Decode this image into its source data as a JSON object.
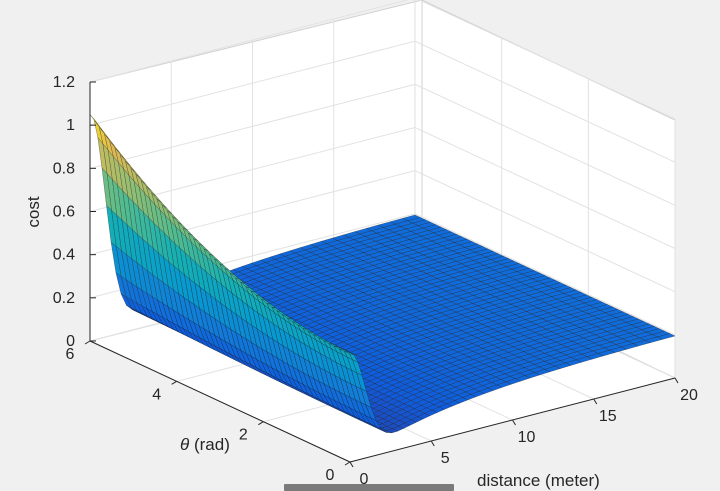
{
  "chart_data": {
    "type": "surface",
    "title": "",
    "xlabel": "distance (meter)",
    "ylabel_prefix": "θ",
    "ylabel_suffix": " (rad)",
    "zlabel": "cost",
    "xlim": [
      0,
      20
    ],
    "ylim": [
      0,
      6
    ],
    "zlim": [
      0,
      1.2
    ],
    "x_ticks": [
      "0",
      "5",
      "10",
      "15",
      "20"
    ],
    "y_ticks": [
      "0",
      "2",
      "4",
      "6"
    ],
    "z_ticks": [
      "0",
      "0.2",
      "0.4",
      "0.6",
      "0.8",
      "1",
      "1.2"
    ],
    "grid": true,
    "colormap": "parula",
    "surface_samples": {
      "note_x": "distance",
      "theta_values": [
        0,
        1.2,
        2.4,
        3.6,
        4.8,
        6.0
      ],
      "distance_values": [
        0,
        0.5,
        1,
        1.5,
        2,
        3,
        4,
        6,
        8,
        10,
        12,
        14,
        16,
        18,
        20
      ],
      "cost_at_theta_0": [
        0.58,
        0.48,
        0.33,
        0.18,
        0.07,
        0.02,
        0.04,
        0.08,
        0.11,
        0.14,
        0.16,
        0.18,
        0.19,
        0.2,
        0.2
      ],
      "cost_at_theta_6": [
        1.05,
        0.82,
        0.5,
        0.22,
        0.08,
        0.02,
        0.04,
        0.08,
        0.11,
        0.14,
        0.16,
        0.18,
        0.19,
        0.2,
        0.2
      ]
    }
  }
}
